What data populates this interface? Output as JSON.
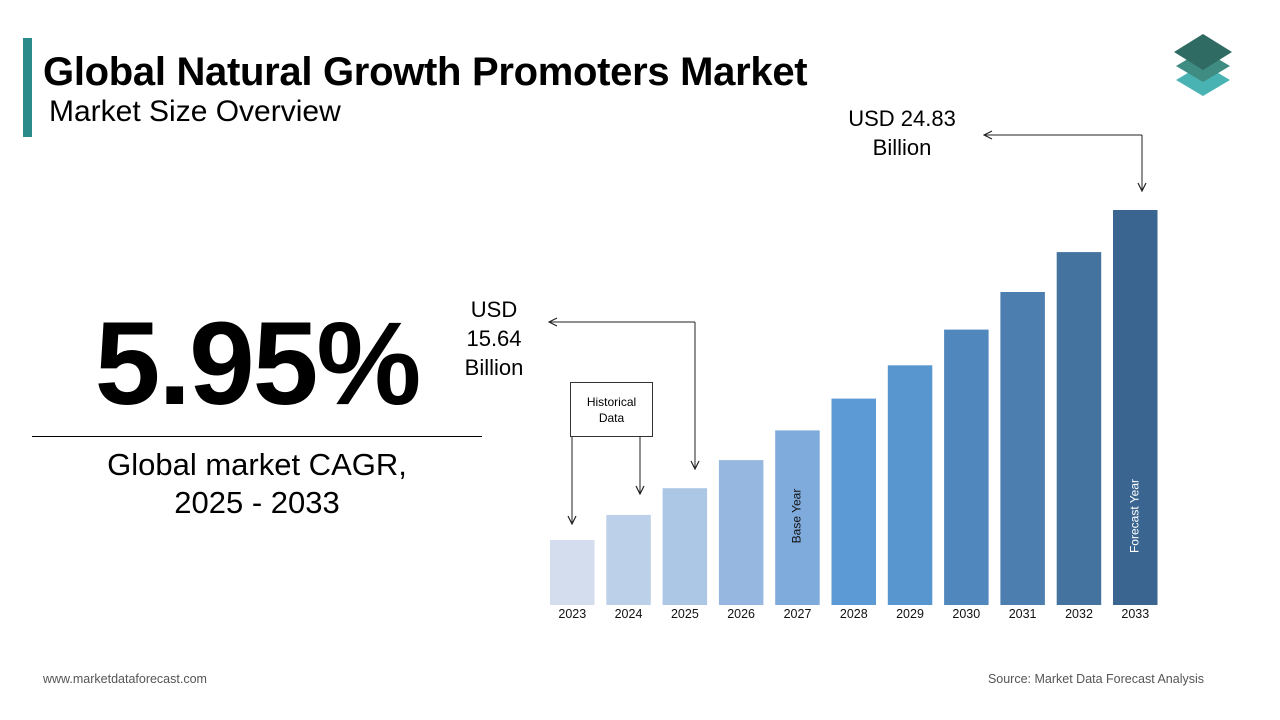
{
  "header": {
    "title": "Global Natural Growth Promoters Market",
    "subtitle": "Market Size Overview"
  },
  "colors": {
    "accent": "#2b8a8a",
    "logo_top": "#2f6b63",
    "logo_mid": "#3f8c82",
    "logo_bottom": "#49b3b3"
  },
  "cagr": {
    "value": "5.95%",
    "label_line1": "Global market CAGR,",
    "label_line2": "2025 - 2033"
  },
  "callouts": {
    "year_2025": {
      "line1": "USD",
      "line2": "15.64",
      "line3": "Billion"
    },
    "year_2033": {
      "line1": "USD 24.83",
      "line2": "Billion"
    },
    "historical": {
      "line1": "Historical",
      "line2": "Data"
    }
  },
  "chart_data": {
    "type": "bar",
    "title": "",
    "xlabel": "",
    "ylabel": "",
    "categories": [
      "2023",
      "2024",
      "2025",
      "2026",
      "2027",
      "2028",
      "2029",
      "2030",
      "2031",
      "2032",
      "2033"
    ],
    "values": [
      13.93,
      14.76,
      15.64,
      16.57,
      17.55,
      18.6,
      19.7,
      20.88,
      22.12,
      23.44,
      24.83
    ],
    "colors": [
      "#d3ddee",
      "#bcd0ea",
      "#acc6e6",
      "#96b8e0",
      "#7faadc",
      "#5c9ad5",
      "#5896cf",
      "#5088bd",
      "#4c7fb0",
      "#45739f",
      "#3a6590"
    ],
    "bar_labels": {
      "2027": "Base Year",
      "2033": "Forecast Year"
    },
    "grid": false,
    "legend": "none"
  },
  "footer": {
    "website": "www.marketdataforecast.com",
    "source": "Source: Market Data Forecast Analysis"
  }
}
